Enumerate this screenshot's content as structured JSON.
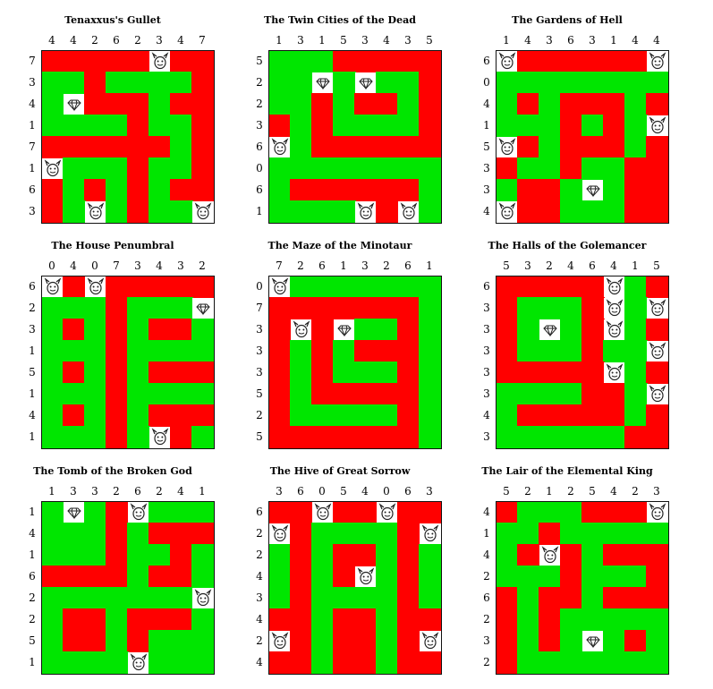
{
  "colors": {
    "wall": "#ff0000",
    "path": "#00e600",
    "border": "#111111"
  },
  "icons": {
    "monster": "monster-face-icon",
    "treasure": "diamond-icon"
  },
  "puzzles": [
    {
      "title": "Tenaxxus's Gullet",
      "cols": [
        4,
        4,
        2,
        6,
        2,
        3,
        4,
        7
      ],
      "rows": [
        7,
        3,
        4,
        1,
        7,
        1,
        6,
        3
      ],
      "grid": [
        "WWWWWMWW",
        "PPWPPPPW",
        "PTWWWPWW",
        "PPPPWPPW",
        "WWWWWWPW",
        "MPPPWPPW",
        "WPWPWPWW",
        "WPMPWPPM"
      ]
    },
    {
      "title": "The Twin Cities of the Dead",
      "cols": [
        1,
        3,
        1,
        5,
        3,
        4,
        3,
        5
      ],
      "rows": [
        5,
        2,
        2,
        3,
        6,
        0,
        6,
        1
      ],
      "grid": [
        "PPPWWWWW",
        "PPTPTPPW",
        "PPWPWWPW",
        "WPWPPPPW",
        "MPWWWWWW",
        "PPPPPPPP",
        "PWWWWWWP",
        "PPPPMWMP"
      ]
    },
    {
      "title": "The Gardens of Hell",
      "cols": [
        1,
        4,
        3,
        6,
        3,
        1,
        4,
        4
      ],
      "rows": [
        6,
        0,
        4,
        1,
        5,
        3,
        3,
        4
      ],
      "grid": [
        "MWWWWWWM",
        "PPPPPPPP",
        "PWPWWWPW",
        "PPPWPWPM",
        "MWPWWWPW",
        "WPPWPPWW",
        "PWWPTPWW",
        "MWWPPPWW"
      ]
    },
    {
      "title": "The House Penumbral",
      "cols": [
        0,
        4,
        0,
        7,
        3,
        4,
        3,
        2
      ],
      "rows": [
        6,
        2,
        3,
        1,
        5,
        1,
        4,
        1
      ],
      "grid": [
        "MWMWWWWW",
        "PPPWPPPT",
        "PWPWPWWP",
        "PPPWPPPP",
        "PWPWPWWW",
        "PPPWPPPP",
        "PWPWPWWW",
        "PPPWPMWP"
      ]
    },
    {
      "title": "The Maze of the Minotaur",
      "cols": [
        7,
        2,
        6,
        1,
        3,
        2,
        6,
        1
      ],
      "rows": [
        0,
        7,
        3,
        3,
        3,
        5,
        2,
        5
      ],
      "grid": [
        "MPPPPPPP",
        "WWWWWWWP",
        "WMWTPPWP",
        "WPWPWWWP",
        "WPWPPPWP",
        "WPWWWWWP",
        "WPPPPPWP",
        "WWWWWWWP"
      ]
    },
    {
      "title": "The Halls of the Golemancer",
      "cols": [
        5,
        3,
        2,
        4,
        6,
        4,
        1,
        5
      ],
      "rows": [
        6,
        3,
        3,
        3,
        3,
        3,
        4,
        3
      ],
      "grid": [
        "WWWWWMPW",
        "WPPPWMPM",
        "WPTPWMPW",
        "WPPPWPPM",
        "WWWWWMPW",
        "PPPPWWPM",
        "PWWWWWPW",
        "PPPPPPWW"
      ]
    },
    {
      "title": "The Tomb of the Broken God",
      "cols": [
        1,
        3,
        3,
        2,
        6,
        2,
        4,
        1
      ],
      "rows": [
        1,
        4,
        1,
        6,
        2,
        2,
        5,
        1
      ],
      "grid": [
        "PTPWMPPP",
        "PPPWPWWW",
        "PPPWPPWP",
        "WWWWPWWP",
        "PPPPPPPM",
        "PWWPWWWP",
        "PWWPWPPP",
        "PPPPMPPP"
      ]
    },
    {
      "title": "The Hive of Great Sorrow",
      "cols": [
        3,
        6,
        0,
        5,
        4,
        0,
        6,
        3
      ],
      "rows": [
        6,
        2,
        2,
        4,
        3,
        4,
        2,
        4
      ],
      "grid": [
        "WWMWWMWW",
        "MWPPPPWM",
        "PWPWWPWP",
        "PWPWMPWP",
        "PWPPPPWP",
        "WWPWWPWW",
        "MWPWWPWM",
        "WWPWWPWW"
      ]
    },
    {
      "title": "The Lair of the Elemental King",
      "cols": [
        5,
        2,
        1,
        2,
        5,
        4,
        2,
        3
      ],
      "rows": [
        4,
        1,
        4,
        2,
        6,
        2,
        3,
        2
      ],
      "grid": [
        "WPPPWWWM",
        "PPWPPPPP",
        "PWMWPWWW",
        "PPPWPPPW",
        "WPWWPWWW",
        "WPWPPPPP",
        "WPWPTPWP",
        "WPPPPPPP"
      ]
    }
  ]
}
